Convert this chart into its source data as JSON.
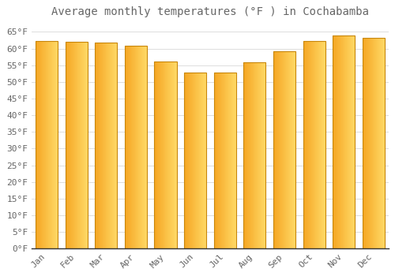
{
  "title": "Average monthly temperatures (°F ) in Cochabamba",
  "months": [
    "Jan",
    "Feb",
    "Mar",
    "Apr",
    "May",
    "Jun",
    "Jul",
    "Aug",
    "Sep",
    "Oct",
    "Nov",
    "Dec"
  ],
  "values": [
    62.2,
    61.9,
    61.7,
    60.8,
    56.1,
    52.9,
    52.9,
    55.9,
    59.2,
    62.2,
    63.9,
    63.1
  ],
  "bar_color_left": "#F5A623",
  "bar_color_right": "#FFD966",
  "bar_edge_color": "#C8860A",
  "background_color": "#FFFFFF",
  "plot_bg_color": "#FFFFFF",
  "grid_color": "#DDDDDD",
  "text_color": "#666666",
  "ylim": [
    0,
    68
  ],
  "yticks": [
    0,
    5,
    10,
    15,
    20,
    25,
    30,
    35,
    40,
    45,
    50,
    55,
    60,
    65
  ],
  "ytick_labels": [
    "0°F",
    "5°F",
    "10°F",
    "15°F",
    "20°F",
    "25°F",
    "30°F",
    "35°F",
    "40°F",
    "45°F",
    "50°F",
    "55°F",
    "60°F",
    "65°F"
  ],
  "title_fontsize": 10,
  "tick_fontsize": 8,
  "font_family": "monospace"
}
